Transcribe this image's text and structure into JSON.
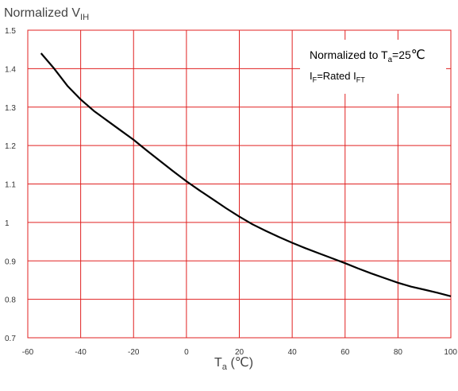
{
  "chart_data": {
    "type": "line",
    "ylabel": {
      "main": "Normalized V",
      "sub": "IH"
    },
    "xlabel": {
      "main": "T",
      "sub": "a",
      "unit": " (℃)"
    },
    "xlim": [
      -60,
      100
    ],
    "ylim": [
      0.7,
      1.5
    ],
    "x_ticks": [
      "-60",
      "-40",
      "-20",
      "0",
      "20",
      "40",
      "60",
      "80",
      "100"
    ],
    "y_ticks": [
      "0.7",
      "0.8",
      "0.9",
      "1",
      "1.1",
      "1.2",
      "1.3",
      "1.4",
      "1.5"
    ],
    "grid": true,
    "grid_color": "#e02020",
    "line_color": "#000000",
    "series": [
      {
        "x": [
          -55,
          -50,
          -45,
          -40,
          -35,
          -30,
          -25,
          -20,
          -15,
          -10,
          -5,
          0,
          5,
          10,
          15,
          20,
          25,
          30,
          35,
          40,
          45,
          50,
          55,
          60,
          65,
          70,
          75,
          80,
          85,
          90,
          95,
          100
        ],
        "y": [
          1.44,
          1.4,
          1.355,
          1.32,
          1.29,
          1.265,
          1.24,
          1.215,
          1.187,
          1.16,
          1.133,
          1.107,
          1.083,
          1.06,
          1.037,
          1.015,
          0.995,
          0.978,
          0.962,
          0.947,
          0.933,
          0.92,
          0.907,
          0.894,
          0.88,
          0.867,
          0.855,
          0.843,
          0.833,
          0.825,
          0.817,
          0.808
        ]
      }
    ],
    "annotations": {
      "line1": {
        "pre": "Normalized to T",
        "sub": "a",
        "post": "=25",
        "unit": "℃"
      },
      "line2": {
        "a": "I",
        "a_sub": "F",
        "mid": "=Rated I",
        "b_sub": "FT"
      }
    }
  }
}
